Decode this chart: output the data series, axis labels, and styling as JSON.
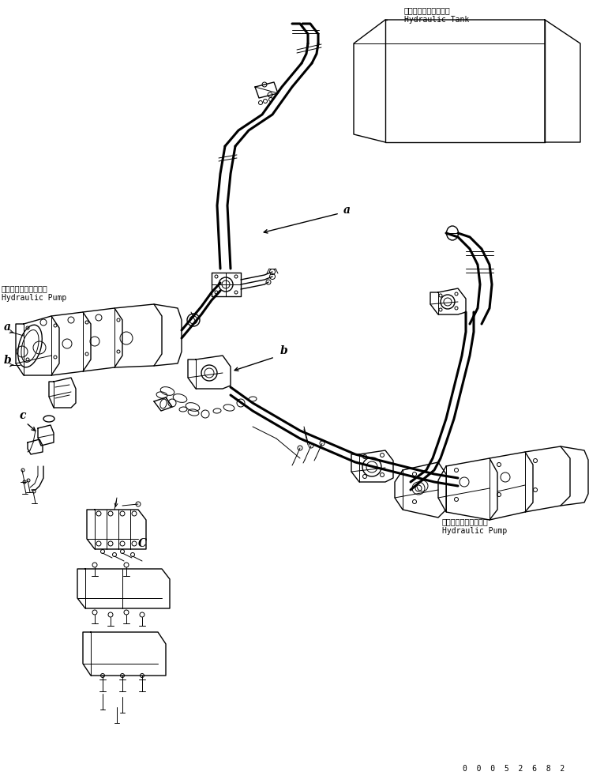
{
  "fig_width": 7.46,
  "fig_height": 9.91,
  "dpi": 100,
  "bg_color": "#ffffff",
  "line_color": "#000000",
  "tank_label_jp": "ハイドロリックタンク",
  "tank_label_en": "Hydraulic Tank",
  "pump1_label_jp": "ハイドロリックポンプ",
  "pump1_label_en": "Hydraulic Pump",
  "pump2_label_jp": "ハイドロリックポンプ",
  "pump2_label_en": "Hydraulic Pump",
  "part_number": "00052682",
  "font_size_label": 7,
  "font_size_partnum": 7,
  "font_size_letter": 10
}
